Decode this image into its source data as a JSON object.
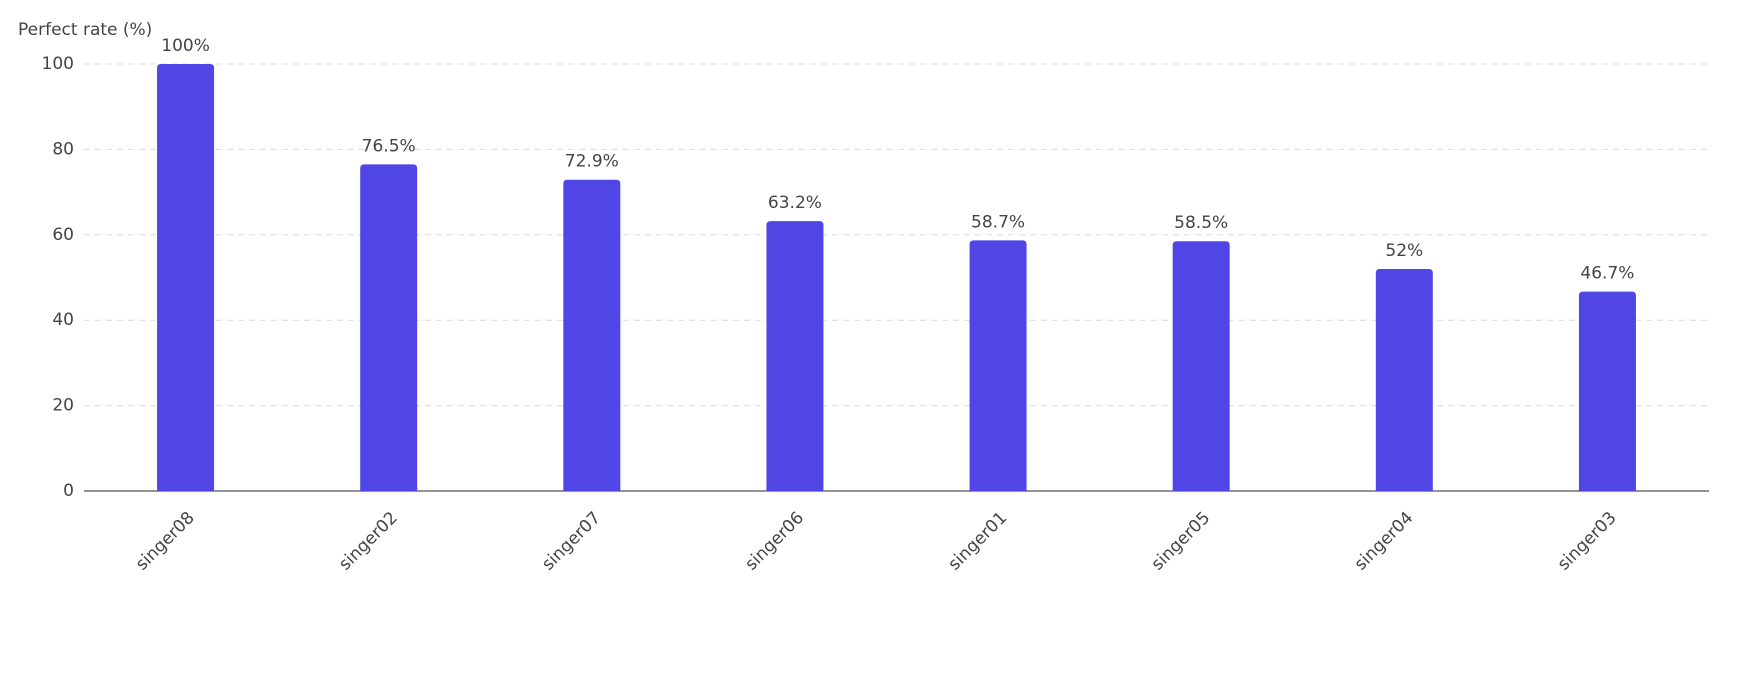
{
  "chart_data": {
    "type": "bar",
    "y_axis_title": "Perfect rate (%)",
    "categories": [
      "singer08",
      "singer02",
      "singer07",
      "singer06",
      "singer01",
      "singer05",
      "singer04",
      "singer03"
    ],
    "values": [
      100,
      76.5,
      72.9,
      63.2,
      58.7,
      58.5,
      52,
      46.7
    ],
    "value_labels": [
      "100%",
      "76.5%",
      "72.9%",
      "63.2%",
      "58.7%",
      "58.5%",
      "52%",
      "46.7%"
    ],
    "color": "#5046e5",
    "ylim": [
      0,
      100
    ],
    "yticks": [
      0,
      20,
      40,
      60,
      80,
      100
    ],
    "grid": true
  }
}
